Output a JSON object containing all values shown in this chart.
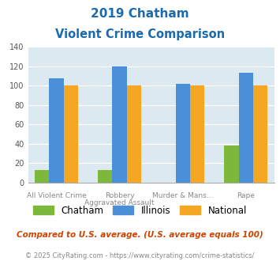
{
  "title_line1": "2019 Chatham",
  "title_line2": "Violent Crime Comparison",
  "groups": {
    "Chatham": [
      13,
      13,
      0,
      38
    ],
    "Illinois": [
      108,
      120,
      102,
      113
    ],
    "National": [
      100,
      100,
      100,
      100
    ]
  },
  "colors": {
    "Chatham": "#7db83a",
    "Illinois": "#4a90d9",
    "National": "#f5a623"
  },
  "top_labels": [
    "",
    "Robbery",
    "Murder & Mans...",
    ""
  ],
  "bot_labels": [
    "All Violent Crime",
    "Aggravated Assault",
    "",
    "Rape"
  ],
  "ylim": [
    0,
    140
  ],
  "yticks": [
    0,
    20,
    40,
    60,
    80,
    100,
    120,
    140
  ],
  "plot_bg": "#dde9f0",
  "title_color": "#1a6aad",
  "footer_text": "Compared to U.S. average. (U.S. average equals 100)",
  "copyright_text": "© 2025 CityRating.com - https://www.cityrating.com/crime-statistics/",
  "footer_color": "#cc4400",
  "copyright_color": "#888888"
}
